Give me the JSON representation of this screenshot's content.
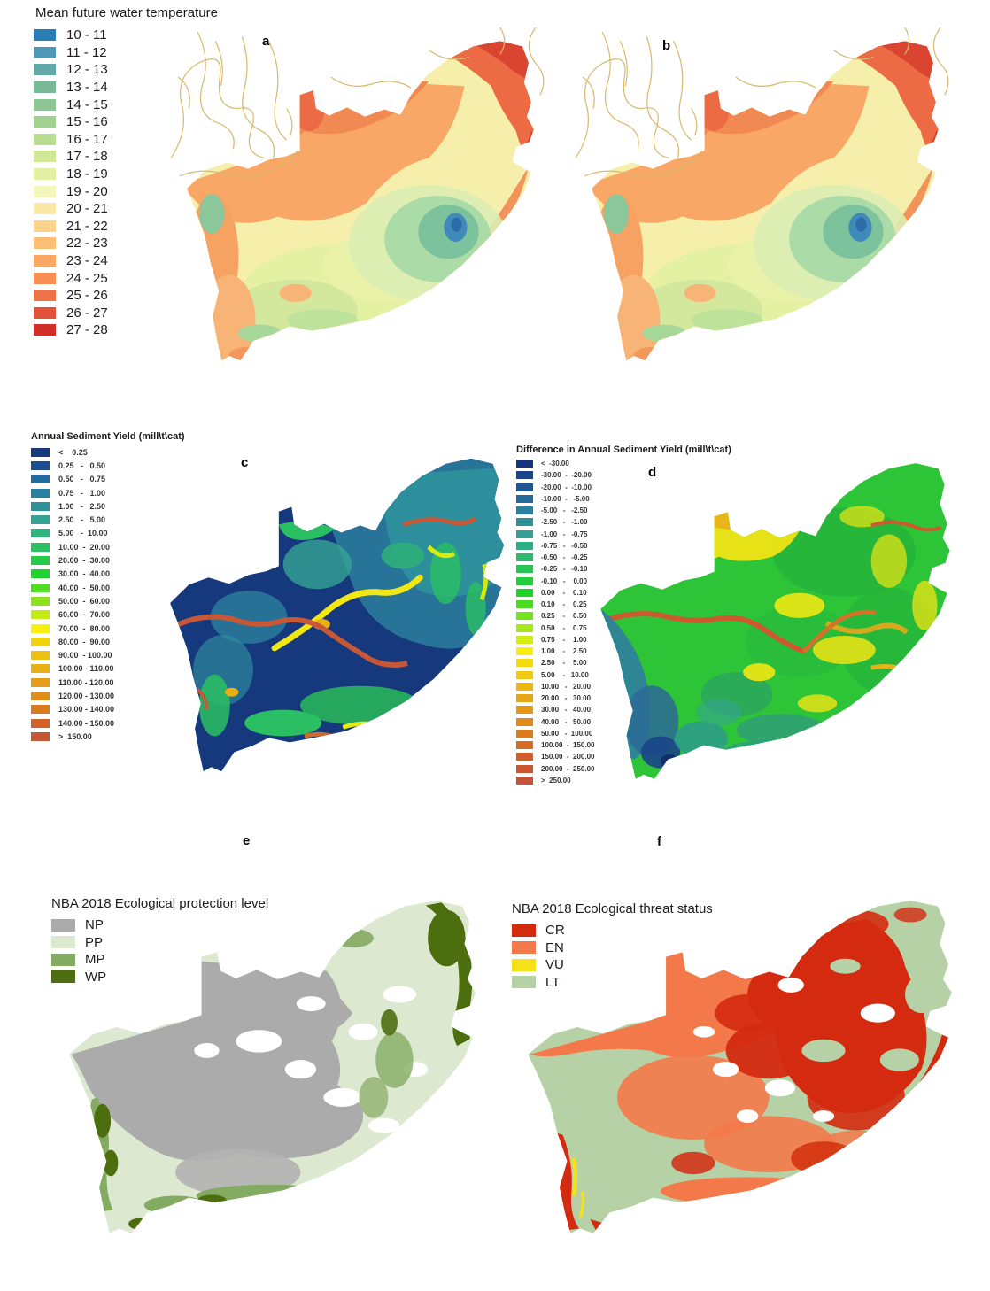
{
  "figure": {
    "panels": [
      {
        "label": "a",
        "legend": "temperature"
      },
      {
        "label": "b",
        "legend": "temperature"
      },
      {
        "label": "c",
        "legend": "sediment_yield"
      },
      {
        "label": "d",
        "legend": "sediment_diff"
      },
      {
        "label": "e",
        "legend": "protection"
      },
      {
        "label": "f",
        "legend": "threat"
      }
    ]
  },
  "colors": {
    "river_network": "#d6ba6e",
    "background": "#ffffff"
  },
  "legends": {
    "temperature": {
      "title": "Mean future water temperature",
      "items": [
        {
          "label": "10 - 11",
          "color": "#2c7cb5"
        },
        {
          "label": "11 - 12",
          "color": "#4f97b5"
        },
        {
          "label": "12 - 13",
          "color": "#62a8a6"
        },
        {
          "label": "13 - 14",
          "color": "#7ab89a"
        },
        {
          "label": "14 - 15",
          "color": "#8dc694"
        },
        {
          "label": "15 - 16",
          "color": "#a2d291"
        },
        {
          "label": "16 - 17",
          "color": "#b9de92"
        },
        {
          "label": "17 - 18",
          "color": "#cfe898"
        },
        {
          "label": "18 - 19",
          "color": "#e3f0a4"
        },
        {
          "label": "19 - 20",
          "color": "#f4f7bb"
        },
        {
          "label": "20 - 21",
          "color": "#f9e8a6"
        },
        {
          "label": "21 - 22",
          "color": "#fbd48c"
        },
        {
          "label": "22 - 23",
          "color": "#fbbf78"
        },
        {
          "label": "23 - 24",
          "color": "#faa965"
        },
        {
          "label": "24 - 25",
          "color": "#f78f54"
        },
        {
          "label": "25 - 26",
          "color": "#f07147"
        },
        {
          "label": "26 - 27",
          "color": "#e25139"
        },
        {
          "label": "27 - 28",
          "color": "#d22f2b"
        }
      ]
    },
    "sediment_yield": {
      "title": "Annual Sediment Yield (mill\\t\\cat)",
      "items": [
        {
          "label": "<    0.25",
          "color": "#163a7d"
        },
        {
          "label": "0.25   -   0.50",
          "color": "#1c4d90"
        },
        {
          "label": "0.50   -   0.75",
          "color": "#226b9f"
        },
        {
          "label": "0.75   -   1.00",
          "color": "#28809f"
        },
        {
          "label": "1.00   -   2.50",
          "color": "#2e929b"
        },
        {
          "label": "2.50   -   5.00",
          "color": "#35a392"
        },
        {
          "label": "5.00   -  10.00",
          "color": "#2fb37f"
        },
        {
          "label": "10.00  -  20.00",
          "color": "#29bf63"
        },
        {
          "label": "20.00  -  30.00",
          "color": "#23ca47"
        },
        {
          "label": "30.00  -  40.00",
          "color": "#1dd42e"
        },
        {
          "label": "40.00  -  50.00",
          "color": "#52dc22"
        },
        {
          "label": "50.00  -  60.00",
          "color": "#8ce31b"
        },
        {
          "label": "60.00  -  70.00",
          "color": "#c3ec14"
        },
        {
          "label": "70.00  -  80.00",
          "color": "#f8ef0d"
        },
        {
          "label": "80.00  -  90.00",
          "color": "#f2d30f"
        },
        {
          "label": "90.00  - 100.00",
          "color": "#edc112"
        },
        {
          "label": "100.00 - 110.00",
          "color": "#e9b015"
        },
        {
          "label": "110.00 - 120.00",
          "color": "#e49e18"
        },
        {
          "label": "120.00 - 130.00",
          "color": "#df8d1b"
        },
        {
          "label": "130.00 - 140.00",
          "color": "#da7b1f"
        },
        {
          "label": "140.00 - 150.00",
          "color": "#d2622a"
        },
        {
          "label": ">  150.00",
          "color": "#c65838"
        }
      ]
    },
    "sediment_diff": {
      "title": "Difference in Annual Sediment Yield (mill\\t\\cat)",
      "items": [
        {
          "label": "<  -30.00",
          "color": "#16357d"
        },
        {
          "label": "-30.00  -  -20.00",
          "color": "#1a4489"
        },
        {
          "label": "-20.00  -  -10.00",
          "color": "#1f5595"
        },
        {
          "label": "-10.00  -   -5.00",
          "color": "#24699e"
        },
        {
          "label": "-5.00   -   -2.50",
          "color": "#29809f"
        },
        {
          "label": "-2.50   -   -1.00",
          "color": "#2e929b"
        },
        {
          "label": "-1.00   -   -0.75",
          "color": "#33a194"
        },
        {
          "label": "-0.75   -   -0.50",
          "color": "#2fae84"
        },
        {
          "label": "-0.50   -   -0.25",
          "color": "#2bba6e"
        },
        {
          "label": "-0.25   -   -0.10",
          "color": "#27c454"
        },
        {
          "label": "-0.10   -    0.00",
          "color": "#23cd3b"
        },
        {
          "label": "0.00    -    0.10",
          "color": "#1ed527"
        },
        {
          "label": "0.10    -    0.25",
          "color": "#47dc20"
        },
        {
          "label": "0.25    -    0.50",
          "color": "#75e21b"
        },
        {
          "label": "0.50    -    0.75",
          "color": "#a5e916"
        },
        {
          "label": "0.75    -    1.00",
          "color": "#d2ee10"
        },
        {
          "label": "1.00    -    2.50",
          "color": "#f9ee0c"
        },
        {
          "label": "2.50    -    5.00",
          "color": "#f5da0e"
        },
        {
          "label": "5.00    -   10.00",
          "color": "#f0c811"
        },
        {
          "label": "10.00   -   20.00",
          "color": "#ecb714"
        },
        {
          "label": "20.00   -   30.00",
          "color": "#e8a716"
        },
        {
          "label": "30.00   -   40.00",
          "color": "#e49819"
        },
        {
          "label": "40.00   -   50.00",
          "color": "#e08a1c"
        },
        {
          "label": "50.00   -  100.00",
          "color": "#dc7c1f"
        },
        {
          "label": "100.00  -  150.00",
          "color": "#d76d23"
        },
        {
          "label": "150.00  -  200.00",
          "color": "#d25f27"
        },
        {
          "label": "200.00  -  250.00",
          "color": "#cc552e"
        },
        {
          "label": ">  250.00",
          "color": "#c65338"
        }
      ]
    },
    "protection": {
      "title": "NBA 2018 Ecological protection level",
      "items": [
        {
          "label": "NP",
          "color": "#ababab"
        },
        {
          "label": "PP",
          "color": "#dde8d0"
        },
        {
          "label": "MP",
          "color": "#84ab62"
        },
        {
          "label": "WP",
          "color": "#4c6e0f"
        }
      ]
    },
    "threat": {
      "title": "NBA 2018 Ecological threat status",
      "items": [
        {
          "label": "CR",
          "color": "#d42a10"
        },
        {
          "label": "EN",
          "color": "#f4794a"
        },
        {
          "label": "VU",
          "color": "#f5e216"
        },
        {
          "label": "LT",
          "color": "#b5d1a5"
        }
      ]
    }
  }
}
